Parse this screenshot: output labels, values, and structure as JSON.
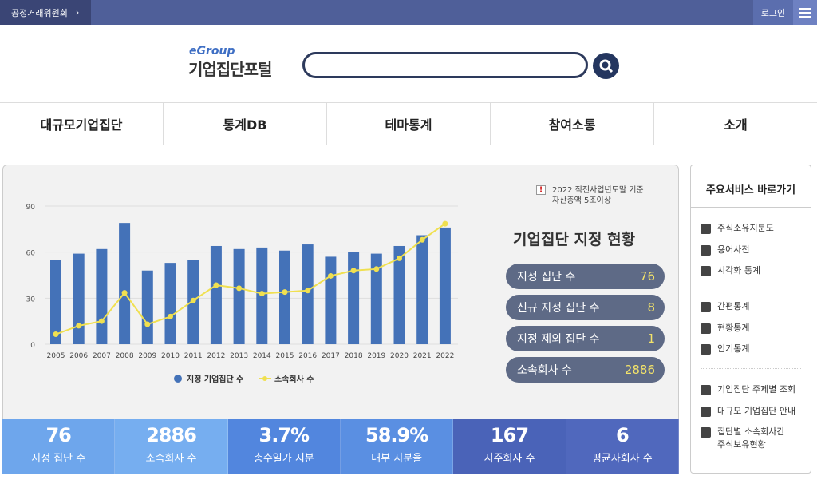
{
  "topbar": {
    "org": "공정거래위원회",
    "login": "로그인"
  },
  "logo": {
    "brand": "eGroup",
    "title": "기업집단포털"
  },
  "search": {
    "value": "",
    "placeholder": ""
  },
  "nav": [
    "대규모기업집단",
    "통계DB",
    "테마통계",
    "참여소통",
    "소개"
  ],
  "notice": {
    "line1": "2022 직전사업년도말 기준",
    "line2": "자산총액 5조이상"
  },
  "status": {
    "title": "기업집단 지정 현황",
    "items": [
      {
        "label": "지정 집단 수",
        "value": "76"
      },
      {
        "label": "신규 지정 집단 수",
        "value": "8"
      },
      {
        "label": "지정 제외 집단 수",
        "value": "1"
      },
      {
        "label": "소속회사 수",
        "value": "2886"
      }
    ]
  },
  "bottom": [
    {
      "value": "76",
      "label": "지정 집단 수",
      "color": "#6ea6ec"
    },
    {
      "value": "2886",
      "label": "소속회사 수",
      "color": "#76aef0"
    },
    {
      "value": "3.7%",
      "label": "총수일가 지분",
      "color": "#5286de"
    },
    {
      "value": "58.9%",
      "label": "내부 지분율",
      "color": "#5a8fe2"
    },
    {
      "value": "167",
      "label": "지주회사 수",
      "color": "#4a63b8"
    },
    {
      "value": "6",
      "label": "평균자회사 수",
      "color": "#5068bd"
    }
  ],
  "sidebar": {
    "title": "주요서비스 바로가기",
    "groups": [
      [
        {
          "icon": "map-icon",
          "label": "주식소유지분도"
        },
        {
          "icon": "book-icon",
          "label": "용어사전"
        },
        {
          "icon": "image-icon",
          "label": "시각화 통계"
        }
      ],
      [
        {
          "icon": "bar-chart-icon",
          "label": "간편통계"
        },
        {
          "icon": "status-chart-icon",
          "label": "현황통계"
        },
        {
          "icon": "popular-chart-icon",
          "label": "인기통계"
        }
      ],
      [
        {
          "icon": "search-icon",
          "label": "기업집단 주제별 조회"
        },
        {
          "icon": "chat-icon",
          "label": "대규모 기업집단 안내"
        },
        {
          "icon": "edit-icon",
          "label": "집단별 소속회사간",
          "label2": "주식보유현황"
        }
      ]
    ]
  },
  "chart_data": {
    "type": "bar",
    "categories": [
      "2005",
      "2006",
      "2007",
      "2008",
      "2009",
      "2010",
      "2011",
      "2012",
      "2013",
      "2014",
      "2015",
      "2016",
      "2017",
      "2018",
      "2019",
      "2020",
      "2021",
      "2022"
    ],
    "series": [
      {
        "name": "지정 기업집단 수",
        "type": "bar",
        "color": "#4472b8",
        "values": [
          55,
          59,
          62,
          79,
          48,
          53,
          55,
          64,
          62,
          63,
          61,
          65,
          57,
          60,
          59,
          64,
          71,
          76
        ]
      },
      {
        "name": "소속회사 수",
        "type": "line",
        "color": "#f0e050",
        "values": [
          6.5,
          12,
          15,
          33.5,
          13,
          18,
          28.5,
          38.5,
          36.5,
          33,
          34,
          35,
          44.5,
          48,
          49,
          56,
          68,
          78.5
        ]
      }
    ],
    "yticks": [
      0,
      30,
      60,
      90
    ],
    "ylim": [
      0,
      90
    ],
    "grid": true,
    "legend": "bottom"
  }
}
